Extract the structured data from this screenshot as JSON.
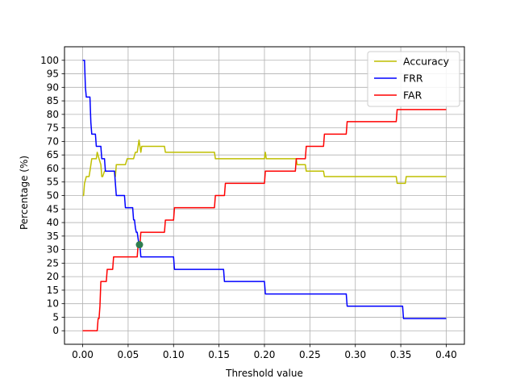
{
  "chart_data": {
    "type": "line",
    "xlabel": "Threshold value",
    "ylabel": "Percentage (%)",
    "xlim": [
      -0.02,
      0.42
    ],
    "ylim": [
      -5,
      105
    ],
    "xticks": [
      0.0,
      0.05,
      0.1,
      0.15,
      0.2,
      0.25,
      0.3,
      0.35,
      0.4
    ],
    "xtick_labels": [
      "0.00",
      "0.05",
      "0.10",
      "0.15",
      "0.20",
      "0.25",
      "0.30",
      "0.35",
      "0.40"
    ],
    "yticks": [
      0,
      5,
      10,
      15,
      20,
      25,
      30,
      35,
      40,
      45,
      50,
      55,
      60,
      65,
      70,
      75,
      80,
      85,
      90,
      95,
      100
    ],
    "ytick_labels": [
      "0",
      "5",
      "10",
      "15",
      "20",
      "25",
      "30",
      "35",
      "40",
      "45",
      "50",
      "55",
      "60",
      "65",
      "70",
      "75",
      "80",
      "85",
      "90",
      "95",
      "100"
    ],
    "grid": true,
    "legend_position": "upper-right",
    "series": [
      {
        "name": "Accuracy",
        "color": "#bfbf00",
        "x": [
          0.0,
          0.001,
          0.002,
          0.004,
          0.005,
          0.007,
          0.008,
          0.01,
          0.012,
          0.015,
          0.016,
          0.018,
          0.02,
          0.021,
          0.022,
          0.024,
          0.025,
          0.027,
          0.035,
          0.036,
          0.037,
          0.045,
          0.047,
          0.049,
          0.052,
          0.054,
          0.056,
          0.058,
          0.06,
          0.062,
          0.063,
          0.064,
          0.065,
          0.066,
          0.09,
          0.091,
          0.145,
          0.146,
          0.2,
          0.201,
          0.202,
          0.203,
          0.235,
          0.236,
          0.245,
          0.246,
          0.265,
          0.266,
          0.345,
          0.346,
          0.355,
          0.356,
          0.4
        ],
        "y": [
          50,
          50,
          54.5,
          57,
          57,
          57,
          59,
          63.6,
          63.6,
          63.6,
          66,
          63.6,
          61.4,
          57,
          57,
          59,
          59,
          59,
          59,
          57,
          61.4,
          61.4,
          61.4,
          63.6,
          63.6,
          63.6,
          63.6,
          66,
          66,
          70.5,
          68.2,
          66,
          68.2,
          68.2,
          68.2,
          66,
          66,
          63.6,
          63.6,
          66,
          63.6,
          63.6,
          63.6,
          61.4,
          61.4,
          59,
          59,
          57,
          57,
          54.5,
          54.5,
          57,
          57
        ]
      },
      {
        "name": "FRR",
        "color": "#0000ff",
        "x": [
          0.0,
          0.002,
          0.003,
          0.004,
          0.005,
          0.008,
          0.009,
          0.01,
          0.014,
          0.015,
          0.02,
          0.021,
          0.024,
          0.025,
          0.035,
          0.036,
          0.037,
          0.046,
          0.047,
          0.055,
          0.056,
          0.057,
          0.058,
          0.059,
          0.06,
          0.061,
          0.062,
          0.063,
          0.064,
          0.066,
          0.1,
          0.101,
          0.155,
          0.156,
          0.2,
          0.201,
          0.29,
          0.291,
          0.352,
          0.353,
          0.4
        ],
        "y": [
          100,
          100,
          90,
          86.4,
          86.4,
          86.4,
          77,
          72.7,
          72.7,
          68.2,
          68.2,
          63.6,
          63.6,
          59,
          59,
          54.5,
          50,
          50,
          45.5,
          45.5,
          41,
          41,
          38,
          36.4,
          36.4,
          34,
          31.8,
          31.8,
          27.3,
          27.3,
          27.3,
          22.7,
          22.7,
          18.2,
          18.2,
          13.6,
          13.6,
          9.1,
          9.1,
          4.5,
          4.5
        ]
      },
      {
        "name": "FAR",
        "color": "#ff0000",
        "x": [
          0.0,
          0.015,
          0.016,
          0.017,
          0.018,
          0.019,
          0.02,
          0.026,
          0.027,
          0.033,
          0.034,
          0.036,
          0.055,
          0.06,
          0.061,
          0.062,
          0.063,
          0.064,
          0.065,
          0.066,
          0.09,
          0.091,
          0.1,
          0.101,
          0.145,
          0.146,
          0.156,
          0.157,
          0.2,
          0.201,
          0.234,
          0.235,
          0.245,
          0.246,
          0.265,
          0.266,
          0.29,
          0.291,
          0.345,
          0.346,
          0.4
        ],
        "y": [
          0,
          0,
          0,
          4.5,
          4.5,
          9.1,
          18.2,
          18.2,
          22.7,
          22.7,
          27.3,
          27.3,
          27.3,
          27.3,
          31.8,
          31.8,
          31.8,
          36.4,
          36.4,
          36.4,
          36.4,
          40.9,
          40.9,
          45.5,
          45.5,
          50,
          50,
          54.5,
          54.5,
          59,
          59,
          63.6,
          63.6,
          68.2,
          68.2,
          72.7,
          72.7,
          77.3,
          77.3,
          81.8,
          81.8
        ]
      }
    ],
    "marker": {
      "x": 0.0625,
      "y": 31.8,
      "color": "#2e7d4f"
    }
  }
}
